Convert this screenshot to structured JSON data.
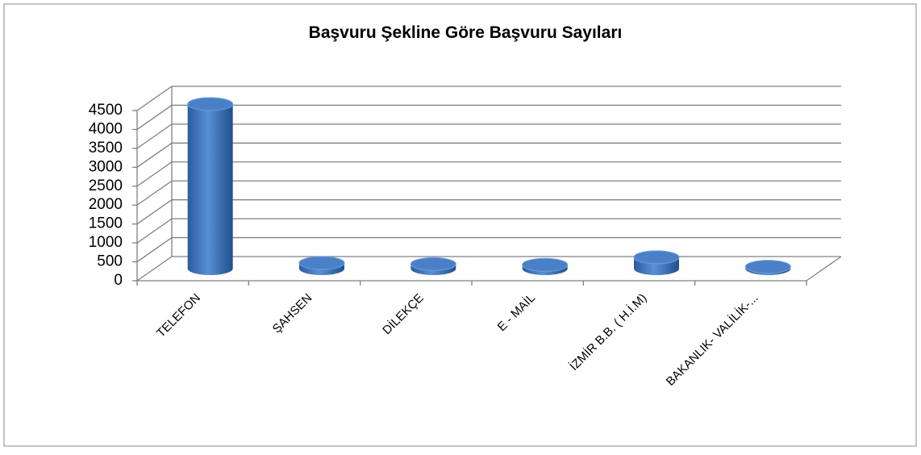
{
  "chart_data": {
    "type": "bar3d",
    "title": "Başvuru Şekline Göre  Başvuru Sayıları",
    "categories": [
      "TELEFON",
      "ŞAHSEN",
      "DİLEKÇE",
      "E - MAİL",
      "İZMİR B.B.  ( H.İ.M)",
      "BAKANLIK- VALİLİK-..."
    ],
    "values": [
      4350,
      150,
      120,
      100,
      300,
      50
    ],
    "color": "#4f81bd",
    "ylim": [
      0,
      4500
    ],
    "yticks": [
      0,
      500,
      1000,
      1500,
      2000,
      2500,
      3000,
      3500,
      4000,
      4500
    ],
    "grid": true
  }
}
